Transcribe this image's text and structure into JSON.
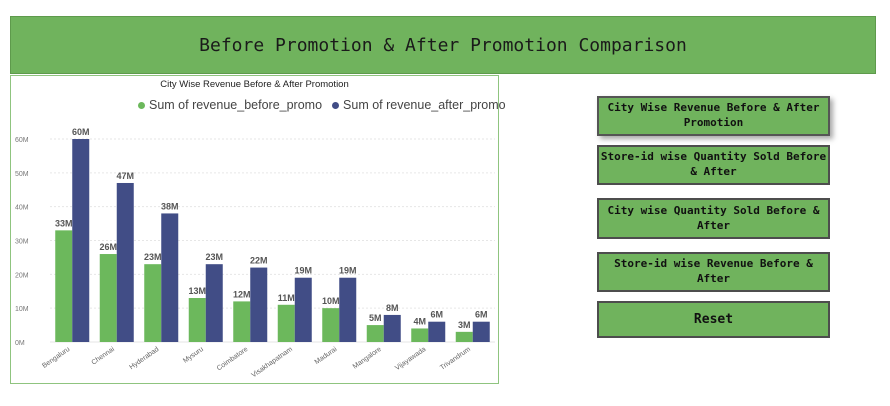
{
  "header": {
    "title": "Before Promotion & After Promotion Comparison"
  },
  "colors": {
    "accent": "#70b35d",
    "before": "#6cb85c",
    "after": "#414d86"
  },
  "buttons": [
    {
      "label": "City Wise Revenue Before & After Promotion",
      "active": true
    },
    {
      "label": "Store-id wise Quantity Sold Before & After",
      "active": false
    },
    {
      "label": "City wise Quantity Sold Before & After",
      "active": false
    },
    {
      "label": "Store-id wise Revenue Before & After",
      "active": false
    },
    {
      "label": "Reset",
      "active": false
    }
  ],
  "chart_data": {
    "type": "bar",
    "title": "City Wise Revenue Before & After Promotion",
    "categories": [
      "Bengaluru",
      "Chennai",
      "Hyderabad",
      "Mysuru",
      "Coimbatore",
      "Visakhapatnam",
      "Madurai",
      "Mangalore",
      "Vijayawada",
      "Trivandrum"
    ],
    "series": [
      {
        "name": "Sum of revenue_before_promo",
        "values": [
          33,
          26,
          23,
          13,
          12,
          11,
          10,
          5,
          4,
          3
        ],
        "labels": [
          "33M",
          "26M",
          "23M",
          "13M",
          "12M",
          "11M",
          "10M",
          "5M",
          "4M",
          "3M"
        ]
      },
      {
        "name": "Sum of revenue_after_promo",
        "values": [
          60,
          47,
          38,
          23,
          22,
          19,
          19,
          8,
          6,
          6
        ],
        "labels": [
          "60M",
          "47M",
          "38M",
          "23M",
          "22M",
          "19M",
          "19M",
          "8M",
          "6M",
          "6M"
        ]
      }
    ],
    "y_ticks": [
      "0M",
      "10M",
      "20M",
      "30M",
      "40M",
      "50M",
      "60M"
    ],
    "ylim": [
      0,
      65
    ],
    "xlabel": "",
    "ylabel": "",
    "grid": true,
    "legend": "top"
  }
}
